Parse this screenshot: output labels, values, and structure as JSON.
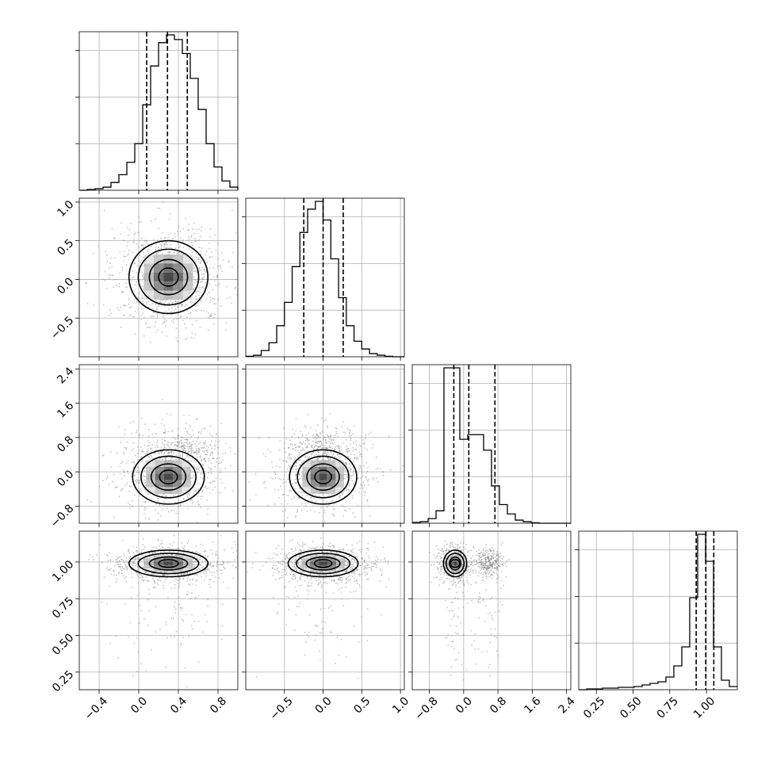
{
  "chart_data": {
    "type": "corner",
    "grid": true,
    "parameters": [
      {
        "index": 0,
        "range": [
          -0.6,
          1.0
        ],
        "ticks": [
          -0.4,
          0.0,
          0.4,
          0.8
        ],
        "tick_labels": [
          "−0.4",
          "0.0",
          "0.4",
          "0.8"
        ],
        "quantiles": [
          0.08,
          0.29,
          0.49
        ]
      },
      {
        "index": 1,
        "range": [
          -1.0,
          1.05
        ],
        "ticks": [
          -0.5,
          0.0,
          0.5,
          1.0
        ],
        "tick_labels": [
          "−0.5",
          "0.0",
          "0.5",
          "1.0"
        ],
        "quantiles": [
          -0.25,
          0.0,
          0.26
        ]
      },
      {
        "index": 2,
        "range": [
          -1.2,
          2.5
        ],
        "ticks": [
          -0.8,
          0.0,
          0.8,
          1.6,
          2.4
        ],
        "tick_labels": [
          "−0.8",
          "0.0",
          "0.8",
          "1.6",
          "2.4"
        ],
        "quantiles": [
          -0.23,
          0.12,
          0.73
        ]
      },
      {
        "index": 3,
        "range": [
          0.13,
          1.21
        ],
        "ticks": [
          0.25,
          0.5,
          0.75,
          1.0
        ],
        "tick_labels": [
          "0.25",
          "0.50",
          "0.75",
          "1.00"
        ],
        "quantiles": [
          0.93,
          0.995,
          1.05
        ]
      }
    ],
    "histograms": [
      {
        "param": 0,
        "edges_start": -0.6,
        "bin_width": 0.08,
        "counts": [
          0,
          0.5,
          1,
          2,
          5,
          10,
          18,
          30,
          55,
          80,
          95,
          100,
          97,
          88,
          72,
          52,
          30,
          15,
          6,
          2,
          0.5
        ]
      },
      {
        "param": 1,
        "edges_start": -1.0,
        "bin_width": 0.1,
        "counts": [
          0.3,
          1,
          4,
          9,
          20,
          35,
          58,
          80,
          95,
          100,
          88,
          63,
          38,
          20,
          10,
          5,
          2,
          1,
          0.3,
          0,
          0
        ]
      },
      {
        "param": 2,
        "edges_start": -1.2,
        "bin_width": 0.185,
        "counts": [
          0.5,
          1,
          3,
          8,
          100,
          100,
          54,
          57,
          57,
          47,
          24,
          12,
          6,
          2,
          1,
          0.3,
          0,
          0,
          0,
          0
        ]
      },
      {
        "param": 3,
        "edges_start": 0.13,
        "bin_width": 0.054,
        "counts": [
          0,
          0.5,
          0.5,
          1,
          1,
          1.5,
          1.5,
          2,
          3,
          4,
          5,
          8,
          15,
          27,
          58,
          98,
          81,
          27,
          6,
          2
        ]
      }
    ],
    "pair_plots": [
      {
        "x_param": 0,
        "y_param": 1,
        "center": [
          0.3,
          0.03
        ],
        "spread": [
          0.22,
          0.26
        ],
        "levels": [
          0.2,
          0.45,
          0.75,
          1.0
        ]
      },
      {
        "x_param": 0,
        "y_param": 2,
        "center": [
          0.3,
          -0.12
        ],
        "spread": [
          0.2,
          0.35
        ],
        "levels": [
          0.2,
          0.45,
          0.75,
          1.0
        ],
        "secondary_mode": [
          0.42,
          0.5
        ]
      },
      {
        "x_param": 1,
        "y_param": 2,
        "center": [
          0.0,
          -0.12
        ],
        "spread": [
          0.24,
          0.35
        ],
        "levels": [
          0.2,
          0.45,
          0.75,
          1.0
        ],
        "secondary_mode": [
          0.0,
          0.5
        ]
      },
      {
        "x_param": 0,
        "y_param": 3,
        "center": [
          0.3,
          0.99
        ],
        "spread": [
          0.22,
          0.05
        ],
        "levels": [
          0.2,
          0.45,
          0.75,
          1.0
        ]
      },
      {
        "x_param": 1,
        "y_param": 3,
        "center": [
          0.0,
          0.99
        ],
        "spread": [
          0.25,
          0.05
        ],
        "levels": [
          0.2,
          0.45,
          0.75,
          1.0
        ]
      },
      {
        "x_param": 2,
        "y_param": 3,
        "center": [
          -0.2,
          0.99
        ],
        "spread": [
          0.15,
          0.05
        ],
        "levels": [
          0.2,
          0.45,
          0.75,
          1.0
        ],
        "secondary_mode": [
          0.6,
          1.0
        ]
      }
    ]
  }
}
